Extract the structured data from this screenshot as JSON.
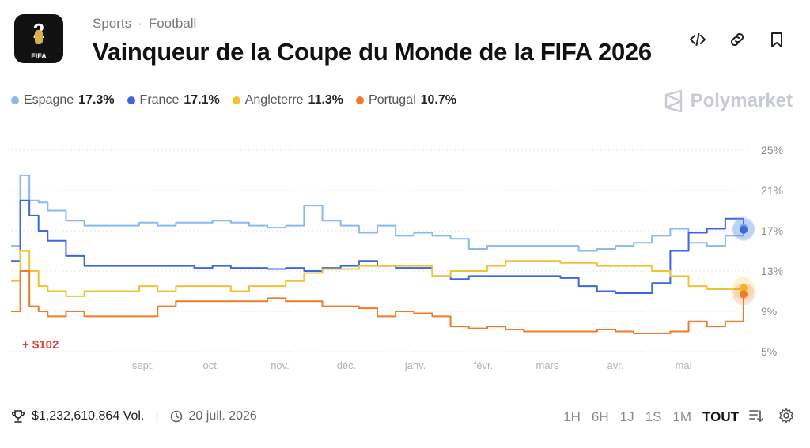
{
  "header": {
    "breadcrumb": [
      "Sports",
      "Football"
    ],
    "title": "Vainqueur de la Coupe du Monde de la FIFA 2026",
    "logo_text": "FIFA"
  },
  "brand": "Polymarket",
  "legend": [
    {
      "name": "Espagne",
      "value": "17.3%",
      "color": "#8ab8f0"
    },
    {
      "name": "France",
      "value": "17.1%",
      "color": "#3d67e0"
    },
    {
      "name": "Angleterre",
      "value": "11.3%",
      "color": "#f2c230"
    },
    {
      "name": "Portugal",
      "value": "10.7%",
      "color": "#f07a2a"
    }
  ],
  "chart_data": {
    "type": "line",
    "x_ticks": [
      "sept.",
      "oct.",
      "nov.",
      "déc.",
      "janv.",
      "févr.",
      "mars",
      "avr.",
      "mai"
    ],
    "y_ticks": [
      "25%",
      "21%",
      "17%",
      "13%",
      "9%",
      "5%"
    ],
    "ylim": [
      5,
      25
    ],
    "grid": true,
    "annotation": "+ $102",
    "x": [
      0,
      0.5,
      1,
      1.5,
      2,
      3,
      4,
      5,
      6,
      7,
      8,
      9,
      10,
      11,
      12,
      13,
      14,
      15,
      16,
      17,
      18,
      19,
      20,
      21,
      22,
      23,
      24,
      25,
      26,
      27,
      28,
      29,
      30,
      31,
      32,
      33,
      34,
      35,
      36,
      37,
      38,
      39,
      40
    ],
    "series": [
      {
        "name": "Espagne",
        "color": "#8ab8f0",
        "values": [
          15.5,
          22.5,
          20,
          19.8,
          19,
          18,
          17.5,
          17.5,
          17.5,
          17.8,
          17.5,
          17.8,
          17.8,
          18,
          17.8,
          17.5,
          17.3,
          17.5,
          19.5,
          18,
          17.5,
          16.8,
          17.5,
          16.5,
          16.8,
          16.5,
          16.2,
          15.2,
          15.5,
          15.5,
          15.5,
          15.5,
          15.5,
          15,
          15.2,
          15.5,
          15.8,
          16.5,
          17.2,
          15.8,
          15.5,
          16.5,
          17.3
        ]
      },
      {
        "name": "France",
        "color": "#3d67e0",
        "values": [
          14,
          20,
          18.5,
          17,
          16,
          14.5,
          13.5,
          13.5,
          13.5,
          13.5,
          13.5,
          13.5,
          13.3,
          13.5,
          13.3,
          13.3,
          13.2,
          13.3,
          13,
          13.3,
          13.5,
          14,
          13.5,
          13.3,
          13.3,
          12.5,
          12.2,
          12.5,
          12.5,
          12.5,
          12.5,
          12.5,
          12.3,
          11.5,
          11,
          10.8,
          10.8,
          11.8,
          15,
          16.8,
          17.2,
          18.2,
          17.1
        ]
      },
      {
        "name": "Angleterre",
        "color": "#f2c230",
        "values": [
          12,
          15,
          13,
          11.5,
          11,
          10.5,
          11,
          11,
          11,
          11.5,
          11,
          11.5,
          11.5,
          11.5,
          11,
          11.5,
          11.5,
          12,
          12.8,
          13.2,
          13.2,
          13.5,
          13.5,
          13.5,
          13.5,
          12.5,
          13,
          13,
          13.5,
          14,
          14,
          14,
          13.8,
          13.8,
          13.5,
          13.5,
          13.5,
          13,
          12.5,
          11.5,
          11.2,
          11.2,
          11.3
        ]
      },
      {
        "name": "Portugal",
        "color": "#f07a2a",
        "values": [
          9,
          13,
          9.5,
          9,
          8.5,
          9,
          8.5,
          8.5,
          8.5,
          8.5,
          9.5,
          10,
          10,
          10,
          10,
          10,
          10.3,
          10,
          10,
          9.5,
          9.5,
          9.3,
          8.5,
          9,
          8.8,
          8.5,
          7.5,
          7.3,
          7.5,
          7.2,
          7.0,
          7.0,
          7.0,
          7.0,
          7.2,
          7.0,
          6.8,
          6.8,
          7.0,
          8.0,
          7.5,
          8.0,
          10.7
        ]
      }
    ]
  },
  "footer": {
    "volume": "$1,232,610,864 Vol.",
    "date": "20 juil. 2026"
  },
  "ranges": [
    "1H",
    "6H",
    "1J",
    "1S",
    "1M",
    "TOUT"
  ],
  "active_range": "TOUT"
}
